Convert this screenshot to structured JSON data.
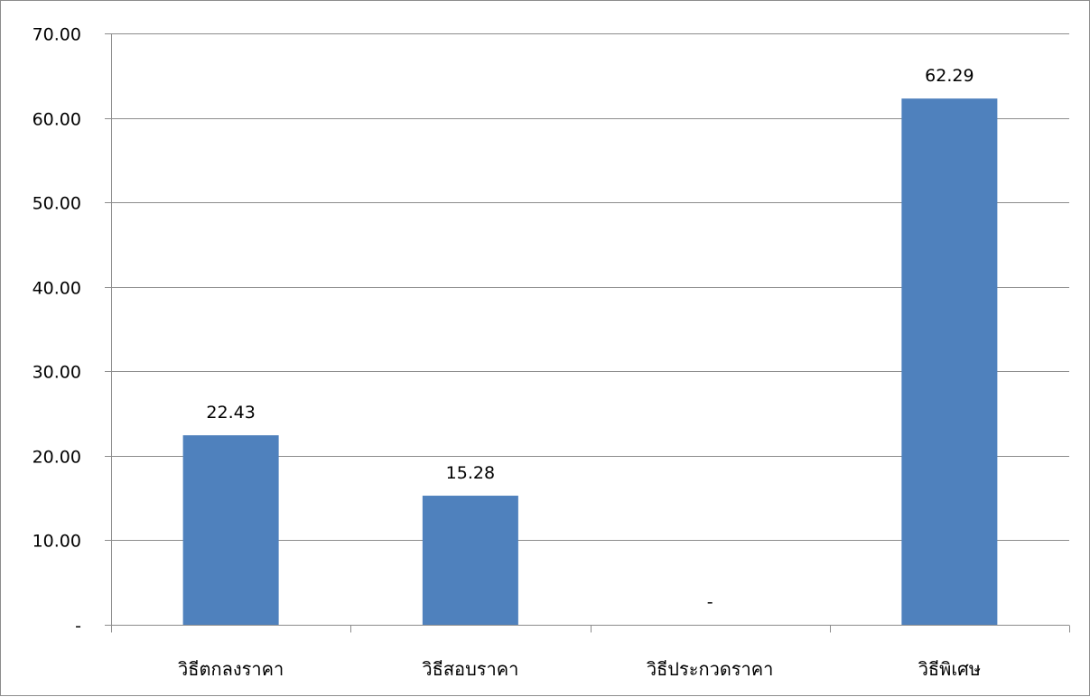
{
  "chart_data": {
    "type": "bar",
    "categories": [
      "วิธีตกลงราคา",
      "วิธีสอบราคา",
      "วิธีประกวดราคา",
      "วิธีพิเศษ"
    ],
    "values": [
      22.43,
      15.28,
      0,
      62.29
    ],
    "data_labels": [
      "22.43",
      "15.28",
      "-",
      "62.29"
    ],
    "y_tick_labels": [
      "-",
      "10.00",
      "20.00",
      "30.00",
      "40.00",
      "50.00",
      "60.00",
      "70.00"
    ],
    "y_ticks": [
      0,
      10,
      20,
      30,
      40,
      50,
      60,
      70
    ],
    "ylim": [
      0,
      70
    ],
    "grid": true,
    "legend": "none",
    "title": "",
    "xlabel": "",
    "ylabel": "",
    "bar_color": "#4f81bd"
  }
}
